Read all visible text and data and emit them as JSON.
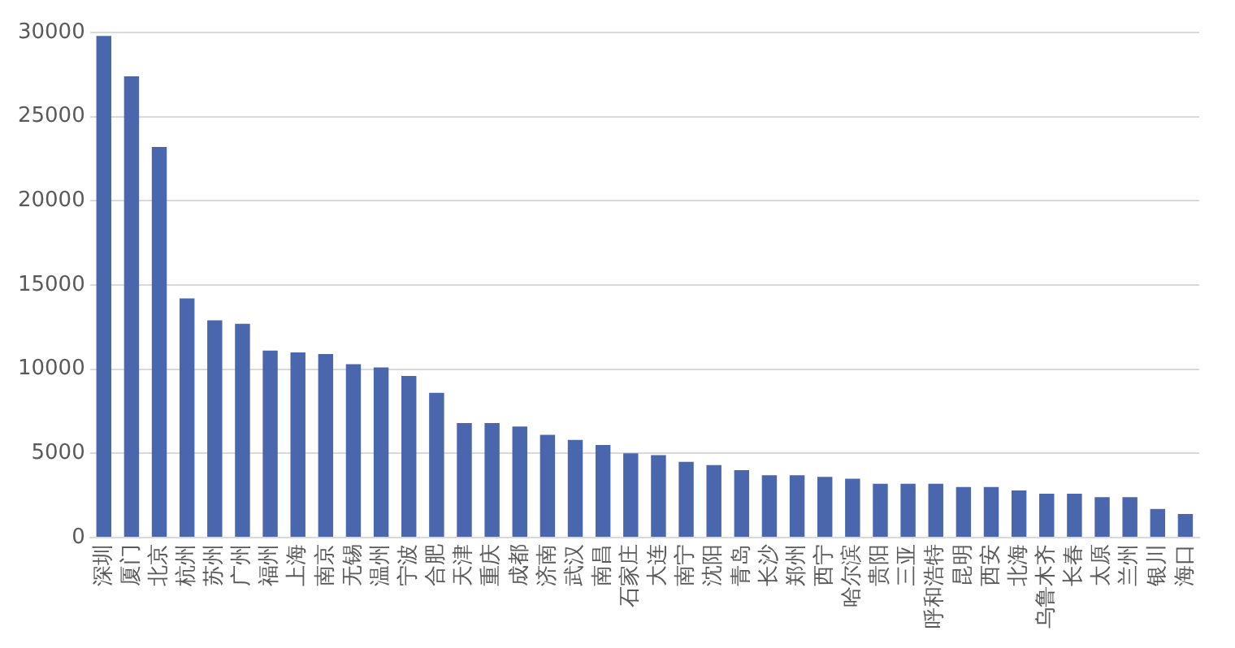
{
  "chart_data": {
    "type": "bar",
    "categories": [
      "深圳",
      "厦门",
      "北京",
      "杭州",
      "苏州",
      "广州",
      "福州",
      "上海",
      "南京",
      "无锡",
      "温州",
      "宁波",
      "合肥",
      "天津",
      "重庆",
      "成都",
      "济南",
      "武汉",
      "南昌",
      "石家庄",
      "大连",
      "南宁",
      "沈阳",
      "青岛",
      "长沙",
      "郑州",
      "西宁",
      "哈尔滨",
      "贵阳",
      "三亚",
      "呼和浩特",
      "昆明",
      "西安",
      "北海",
      "乌鲁木齐",
      "长春",
      "太原",
      "兰州",
      "银川",
      "海口"
    ],
    "values": [
      29800,
      27400,
      23200,
      14200,
      12900,
      12700,
      11100,
      11000,
      10900,
      10300,
      10100,
      9600,
      8600,
      6800,
      6800,
      6600,
      6100,
      5800,
      5500,
      5000,
      4900,
      4500,
      4300,
      4000,
      3700,
      3700,
      3600,
      3500,
      3200,
      3200,
      3200,
      3000,
      3000,
      2800,
      2600,
      2600,
      2400,
      2400,
      1700,
      1400
    ],
    "color": "#4a66ac",
    "ylim": [
      0,
      30000
    ],
    "yticks": [
      0,
      5000,
      10000,
      15000,
      20000,
      25000,
      30000
    ],
    "grid": "y",
    "legend": false
  }
}
